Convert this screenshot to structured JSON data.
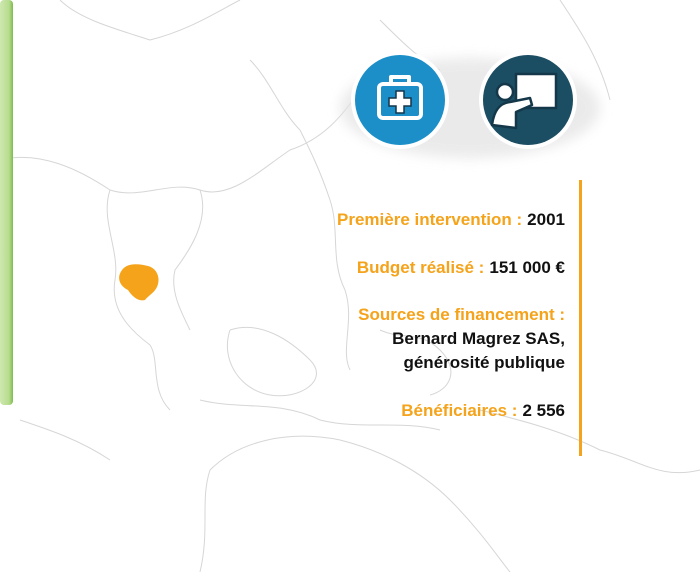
{
  "facts": [
    {
      "label": "Première intervention :",
      "value": "2001"
    },
    {
      "label": "Budget réalisé :",
      "value": "151 000 €"
    },
    {
      "label": "Sources de financement :",
      "value_lines": [
        "Bernard Magrez SAS,",
        "générosité publique"
      ]
    },
    {
      "label": "Bénéficiaires :",
      "value": "2 556"
    }
  ]
}
